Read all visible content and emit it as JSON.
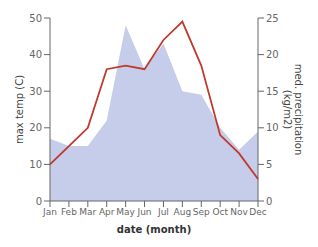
{
  "chart_data": {
    "type": "area",
    "categories": [
      "Jan",
      "Feb",
      "Mar",
      "Apr",
      "May",
      "Jun",
      "Jul",
      "Aug",
      "Sep",
      "Oct",
      "Nov",
      "Dec"
    ],
    "series": [
      {
        "type": "area",
        "color": "#bfc8e8",
        "values": [
          17,
          15,
          15,
          22,
          48,
          36,
          43,
          30,
          29,
          20,
          14,
          19
        ]
      },
      {
        "type": "line",
        "color": "#c0392b",
        "axis": "y2",
        "values": [
          5.0,
          7.5,
          10.0,
          18.0,
          18.5,
          18.0,
          22.0,
          24.5,
          18.5,
          9.0,
          6.5,
          3.0
        ]
      }
    ],
    "xlabel": "date (month)",
    "ylabel": "max temp (C)",
    "y2label": "med. precipitation\n(kg/m2)",
    "ylim": [
      0,
      50
    ],
    "yticks": [
      0,
      10,
      20,
      30,
      40,
      50
    ],
    "y2lim": [
      0,
      25
    ],
    "y2ticks": [
      0,
      5,
      10,
      15,
      20,
      25
    ],
    "grid": false
  }
}
